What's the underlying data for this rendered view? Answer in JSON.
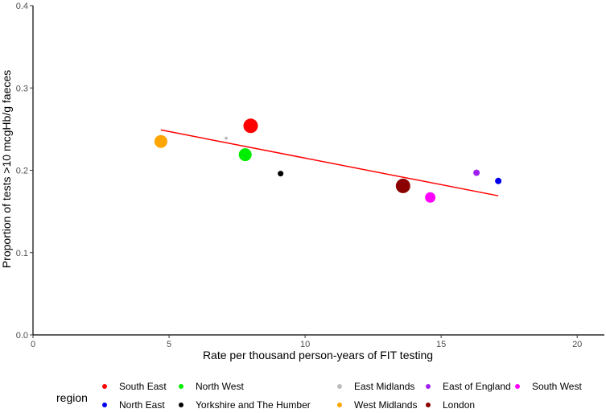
{
  "chart_data": {
    "type": "scatter",
    "title": "",
    "xlabel": "Rate per thousand person-years of FIT testing",
    "ylabel": "Proportion of tests >10 mcgHb/g faeces",
    "xlim": [
      0,
      21
    ],
    "ylim": [
      0,
      0.4
    ],
    "x_ticks": [
      0,
      5,
      10,
      15,
      20
    ],
    "x_tick_labels": [
      "0",
      "5",
      "10",
      "15",
      "20"
    ],
    "y_ticks": [
      0,
      0.1,
      0.2,
      0.3,
      0.4
    ],
    "y_tick_labels": [
      "0.0",
      "0.1",
      "0.2",
      "0.3",
      "0.4"
    ],
    "grid": false,
    "legend": {
      "title": "region",
      "placement": "bottom",
      "entries": [
        {
          "label": "South East",
          "color": "#ff0000"
        },
        {
          "label": "North West",
          "color": "#00ee00"
        },
        {
          "label": "East Midlands",
          "color": "#bebebe"
        },
        {
          "label": "East of England",
          "color": "#a020f0"
        },
        {
          "label": "South West",
          "color": "#ff00ff"
        },
        {
          "label": "North East",
          "color": "#0000ee"
        },
        {
          "label": "Yorkshire and The Humber",
          "color": "#000000"
        },
        {
          "label": "West Midlands",
          "color": "#ffa500"
        },
        {
          "label": "London",
          "color": "#8b0000"
        }
      ]
    },
    "series": [
      {
        "name": "South East",
        "x": 8.0,
        "y": 0.254,
        "size": 9,
        "color": "#ff0000"
      },
      {
        "name": "North West",
        "x": 7.8,
        "y": 0.219,
        "size": 8,
        "color": "#00ee00"
      },
      {
        "name": "East Midlands",
        "x": 7.1,
        "y": 0.239,
        "size": 2,
        "color": "#bebebe"
      },
      {
        "name": "East of England",
        "x": 16.3,
        "y": 0.197,
        "size": 4,
        "color": "#a020f0"
      },
      {
        "name": "South West",
        "x": 14.6,
        "y": 0.167,
        "size": 6.5,
        "color": "#ff00ff"
      },
      {
        "name": "North East",
        "x": 17.1,
        "y": 0.187,
        "size": 4,
        "color": "#0000ee"
      },
      {
        "name": "Yorkshire and The Humber",
        "x": 9.1,
        "y": 0.196,
        "size": 3.5,
        "color": "#000000"
      },
      {
        "name": "West Midlands",
        "x": 4.7,
        "y": 0.235,
        "size": 8,
        "color": "#ffa500"
      },
      {
        "name": "London",
        "x": 13.6,
        "y": 0.181,
        "size": 9,
        "color": "#8b0000"
      }
    ],
    "trend_line": {
      "x": [
        4.7,
        17.1
      ],
      "y": [
        0.249,
        0.169
      ],
      "color": "#ff0000"
    }
  }
}
